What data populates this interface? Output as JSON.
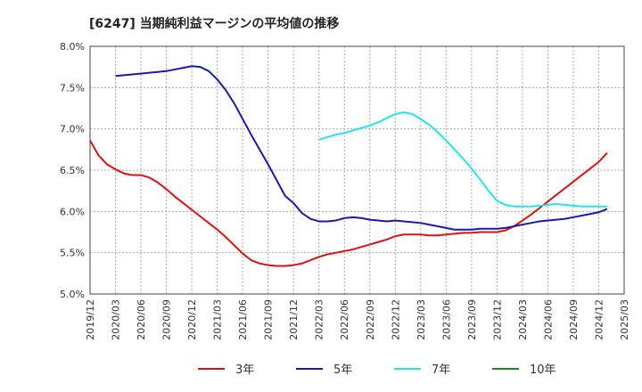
{
  "chart_data": {
    "type": "line",
    "title": "[6247]  当期純利益マージンの平均値の推移",
    "xlabel": "",
    "ylabel": "",
    "ylim": [
      5.0,
      8.0
    ],
    "yticks": [
      "5.0%",
      "5.5%",
      "6.0%",
      "6.5%",
      "7.0%",
      "7.5%",
      "8.0%"
    ],
    "ytick_values": [
      5.0,
      5.5,
      6.0,
      6.5,
      7.0,
      7.5,
      8.0
    ],
    "xticks": [
      "2019/12",
      "2020/03",
      "2020/06",
      "2020/09",
      "2020/12",
      "2021/03",
      "2021/06",
      "2021/09",
      "2021/12",
      "2022/03",
      "2022/06",
      "2022/09",
      "2022/12",
      "2023/03",
      "2023/06",
      "2023/09",
      "2023/12",
      "2024/03",
      "2024/06",
      "2024/09",
      "2024/12",
      "2025/03"
    ],
    "grid": true,
    "legend_position": "bottom",
    "series": [
      {
        "name": "3年",
        "color": "#dd1111",
        "values": [
          [
            "2019/12",
            6.86
          ],
          [
            "2020/01",
            6.68
          ],
          [
            "2020/02",
            6.57
          ],
          [
            "2020/03",
            6.51
          ],
          [
            "2020/04",
            6.46
          ],
          [
            "2020/05",
            6.44
          ],
          [
            "2020/06",
            6.44
          ],
          [
            "2020/07",
            6.41
          ],
          [
            "2020/08",
            6.35
          ],
          [
            "2020/09",
            6.27
          ],
          [
            "2020/10",
            6.18
          ],
          [
            "2020/11",
            6.1
          ],
          [
            "2020/12",
            6.02
          ],
          [
            "2021/01",
            5.94
          ],
          [
            "2021/02",
            5.86
          ],
          [
            "2021/03",
            5.78
          ],
          [
            "2021/04",
            5.69
          ],
          [
            "2021/05",
            5.59
          ],
          [
            "2021/06",
            5.49
          ],
          [
            "2021/07",
            5.41
          ],
          [
            "2021/08",
            5.37
          ],
          [
            "2021/09",
            5.35
          ],
          [
            "2021/10",
            5.34
          ],
          [
            "2021/11",
            5.34
          ],
          [
            "2021/12",
            5.35
          ],
          [
            "2022/01",
            5.37
          ],
          [
            "2022/02",
            5.41
          ],
          [
            "2022/03",
            5.45
          ],
          [
            "2022/04",
            5.48
          ],
          [
            "2022/05",
            5.5
          ],
          [
            "2022/06",
            5.52
          ],
          [
            "2022/07",
            5.54
          ],
          [
            "2022/08",
            5.57
          ],
          [
            "2022/09",
            5.6
          ],
          [
            "2022/10",
            5.63
          ],
          [
            "2022/11",
            5.66
          ],
          [
            "2022/12",
            5.7
          ],
          [
            "2023/01",
            5.72
          ],
          [
            "2023/02",
            5.72
          ],
          [
            "2023/03",
            5.72
          ],
          [
            "2023/04",
            5.71
          ],
          [
            "2023/05",
            5.71
          ],
          [
            "2023/06",
            5.72
          ],
          [
            "2023/07",
            5.73
          ],
          [
            "2023/08",
            5.74
          ],
          [
            "2023/09",
            5.74
          ],
          [
            "2023/10",
            5.75
          ],
          [
            "2023/11",
            5.75
          ],
          [
            "2023/12",
            5.75
          ],
          [
            "2024/01",
            5.77
          ],
          [
            "2024/02",
            5.82
          ],
          [
            "2024/03",
            5.89
          ],
          [
            "2024/04",
            5.96
          ],
          [
            "2024/05",
            6.04
          ],
          [
            "2024/06",
            6.12
          ],
          [
            "2024/07",
            6.2
          ],
          [
            "2024/08",
            6.28
          ],
          [
            "2024/09",
            6.36
          ],
          [
            "2024/10",
            6.44
          ],
          [
            "2024/11",
            6.52
          ],
          [
            "2024/12",
            6.6
          ],
          [
            "2025/01",
            6.71
          ]
        ]
      },
      {
        "name": "5年",
        "color": "#1a1aaa",
        "values": [
          [
            "2020/03",
            7.64
          ],
          [
            "2020/04",
            7.65
          ],
          [
            "2020/05",
            7.66
          ],
          [
            "2020/06",
            7.67
          ],
          [
            "2020/07",
            7.68
          ],
          [
            "2020/08",
            7.69
          ],
          [
            "2020/09",
            7.7
          ],
          [
            "2020/10",
            7.72
          ],
          [
            "2020/11",
            7.74
          ],
          [
            "2020/12",
            7.76
          ],
          [
            "2021/01",
            7.75
          ],
          [
            "2021/02",
            7.7
          ],
          [
            "2021/03",
            7.6
          ],
          [
            "2021/04",
            7.47
          ],
          [
            "2021/05",
            7.31
          ],
          [
            "2021/06",
            7.12
          ],
          [
            "2021/07",
            6.93
          ],
          [
            "2021/08",
            6.75
          ],
          [
            "2021/09",
            6.57
          ],
          [
            "2021/10",
            6.38
          ],
          [
            "2021/11",
            6.19
          ],
          [
            "2021/12",
            6.1
          ],
          [
            "2022/01",
            5.98
          ],
          [
            "2022/02",
            5.91
          ],
          [
            "2022/03",
            5.88
          ],
          [
            "2022/04",
            5.88
          ],
          [
            "2022/05",
            5.89
          ],
          [
            "2022/06",
            5.92
          ],
          [
            "2022/07",
            5.93
          ],
          [
            "2022/08",
            5.92
          ],
          [
            "2022/09",
            5.9
          ],
          [
            "2022/10",
            5.89
          ],
          [
            "2022/11",
            5.88
          ],
          [
            "2022/12",
            5.89
          ],
          [
            "2023/01",
            5.88
          ],
          [
            "2023/02",
            5.87
          ],
          [
            "2023/03",
            5.86
          ],
          [
            "2023/04",
            5.84
          ],
          [
            "2023/05",
            5.82
          ],
          [
            "2023/06",
            5.8
          ],
          [
            "2023/07",
            5.78
          ],
          [
            "2023/08",
            5.78
          ],
          [
            "2023/09",
            5.78
          ],
          [
            "2023/10",
            5.79
          ],
          [
            "2023/11",
            5.79
          ],
          [
            "2023/12",
            5.79
          ],
          [
            "2024/01",
            5.8
          ],
          [
            "2024/02",
            5.82
          ],
          [
            "2024/03",
            5.84
          ],
          [
            "2024/04",
            5.86
          ],
          [
            "2024/05",
            5.88
          ],
          [
            "2024/06",
            5.89
          ],
          [
            "2024/07",
            5.9
          ],
          [
            "2024/08",
            5.91
          ],
          [
            "2024/09",
            5.93
          ],
          [
            "2024/10",
            5.95
          ],
          [
            "2024/11",
            5.97
          ],
          [
            "2024/12",
            5.99
          ],
          [
            "2025/01",
            6.03
          ]
        ]
      },
      {
        "name": "7年",
        "color": "#22e5e5",
        "values": [
          [
            "2022/03",
            6.87
          ],
          [
            "2022/04",
            6.9
          ],
          [
            "2022/05",
            6.93
          ],
          [
            "2022/06",
            6.95
          ],
          [
            "2022/07",
            6.98
          ],
          [
            "2022/08",
            7.01
          ],
          [
            "2022/09",
            7.04
          ],
          [
            "2022/10",
            7.08
          ],
          [
            "2022/11",
            7.13
          ],
          [
            "2022/12",
            7.18
          ],
          [
            "2023/01",
            7.2
          ],
          [
            "2023/02",
            7.18
          ],
          [
            "2023/03",
            7.12
          ],
          [
            "2023/04",
            7.05
          ],
          [
            "2023/05",
            6.96
          ],
          [
            "2023/06",
            6.86
          ],
          [
            "2023/07",
            6.75
          ],
          [
            "2023/08",
            6.64
          ],
          [
            "2023/09",
            6.52
          ],
          [
            "2023/10",
            6.39
          ],
          [
            "2023/11",
            6.25
          ],
          [
            "2023/12",
            6.13
          ],
          [
            "2024/01",
            6.08
          ],
          [
            "2024/02",
            6.06
          ],
          [
            "2024/03",
            6.06
          ],
          [
            "2024/04",
            6.06
          ],
          [
            "2024/05",
            6.07
          ],
          [
            "2024/06",
            6.08
          ],
          [
            "2024/07",
            6.09
          ],
          [
            "2024/08",
            6.08
          ],
          [
            "2024/09",
            6.07
          ],
          [
            "2024/10",
            6.06
          ],
          [
            "2024/11",
            6.06
          ],
          [
            "2024/12",
            6.06
          ],
          [
            "2025/01",
            6.06
          ]
        ]
      },
      {
        "name": "10年",
        "color": "#228822",
        "values": []
      }
    ]
  }
}
